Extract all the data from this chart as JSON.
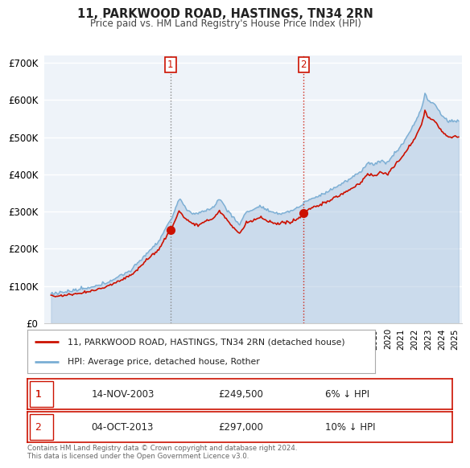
{
  "title": "11, PARKWOOD ROAD, HASTINGS, TN34 2RN",
  "subtitle": "Price paid vs. HM Land Registry's House Price Index (HPI)",
  "hpi_color": "#aac4e0",
  "hpi_line_color": "#7aaed4",
  "price_color": "#cc1100",
  "background_color": "#ffffff",
  "plot_bg": "#eef3f9",
  "ylim": [
    0,
    720000
  ],
  "yticks": [
    0,
    100000,
    200000,
    300000,
    400000,
    500000,
    600000,
    700000
  ],
  "ytick_labels": [
    "£0",
    "£100K",
    "£200K",
    "£300K",
    "£400K",
    "£500K",
    "£600K",
    "£700K"
  ],
  "sale1_date_str": "14-NOV-2003",
  "sale1_price": 249500,
  "sale1_year": 2003.87,
  "sale1_label_pct": "6% ↓ HPI",
  "sale2_date_str": "04-OCT-2013",
  "sale2_price": 297000,
  "sale2_year": 2013.75,
  "sale2_label_pct": "10% ↓ HPI",
  "legend_label1": "11, PARKWOOD ROAD, HASTINGS, TN34 2RN (detached house)",
  "legend_label2": "HPI: Average price, detached house, Rother",
  "footer": "Contains HM Land Registry data © Crown copyright and database right 2024.\nThis data is licensed under the Open Government Licence v3.0.",
  "xmin": 1994.5,
  "xmax": 2025.5
}
